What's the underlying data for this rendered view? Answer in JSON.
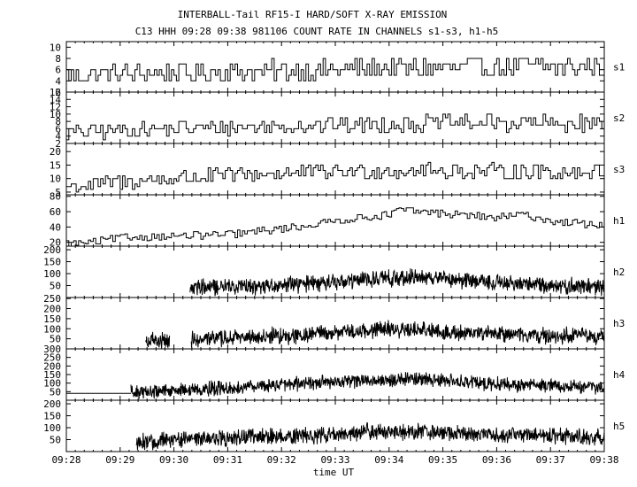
{
  "header": {
    "title": "INTERBALL-Tail RF15-I HARD/SOFT X-RAY EMISSION",
    "subtitle": "C13 HHH 09:28 09:38 981106  COUNT RATE IN CHANNELS s1-s3, h1-h5"
  },
  "chart_data": {
    "type": "line",
    "title": "INTERBALL-Tail RF15-I HARD/SOFT X-RAY EMISSION",
    "subtitle": "C13 HHH 09:28 09:38 981106  COUNT RATE IN CHANNELS s1-s3, h1-h5",
    "xlabel": "time UT",
    "x_range": [
      "09:28",
      "09:38"
    ],
    "x_ticks": [
      "09:28",
      "09:29",
      "09:30",
      "09:31",
      "09:32",
      "09:33",
      "09:34",
      "09:35",
      "09:36",
      "09:37",
      "09:38"
    ],
    "panels": [
      {
        "name": "s1",
        "ylim": [
          2,
          11
        ],
        "yticks": [
          "10",
          "8",
          "6",
          "4",
          "2"
        ],
        "style": "step",
        "trend": [
          [
            0,
            5
          ],
          [
            3,
            5.6
          ],
          [
            6,
            6.2
          ],
          [
            8,
            6.6
          ],
          [
            10,
            6.4
          ]
        ],
        "noise": 1.8
      },
      {
        "name": "s2",
        "ylim": [
          2,
          16
        ],
        "yticks": [
          "16",
          "14",
          "12",
          "10",
          "8",
          "6",
          "4",
          "2"
        ],
        "style": "step",
        "trend": [
          [
            0,
            5
          ],
          [
            2,
            6
          ],
          [
            5,
            7
          ],
          [
            7,
            7.5
          ],
          [
            10,
            7.4
          ]
        ],
        "noise": 2.2
      },
      {
        "name": "s3",
        "ylim": [
          4,
          23
        ],
        "yticks": [
          "20",
          "15",
          "10",
          "5"
        ],
        "style": "step",
        "trend": [
          [
            0,
            7
          ],
          [
            2,
            10
          ],
          [
            4,
            12
          ],
          [
            6,
            13
          ],
          [
            8,
            12.5
          ],
          [
            10,
            12.5
          ]
        ],
        "noise": 3.0
      },
      {
        "name": "h1",
        "ylim": [
          15,
          82
        ],
        "yticks": [
          "80",
          "60",
          "40",
          "20"
        ],
        "style": "step",
        "trend": [
          [
            0,
            18
          ],
          [
            0.5,
            20
          ],
          [
            1,
            26
          ],
          [
            2,
            28
          ],
          [
            3,
            30
          ],
          [
            3.8,
            36
          ],
          [
            4.5,
            42
          ],
          [
            5,
            48
          ],
          [
            6,
            56
          ],
          [
            6.2,
            62
          ],
          [
            7,
            58
          ],
          [
            8,
            52
          ],
          [
            8.5,
            56
          ],
          [
            9,
            48
          ],
          [
            10,
            42
          ]
        ],
        "noise": 5
      },
      {
        "name": "h2",
        "ylim": [
          0,
          215
        ],
        "yticks": [
          "200",
          "150",
          "100",
          "50"
        ],
        "style": "noise",
        "start": 2.3,
        "trend": [
          [
            2.3,
            40
          ],
          [
            4,
            52
          ],
          [
            5,
            65
          ],
          [
            6,
            82
          ],
          [
            6.8,
            85
          ],
          [
            8,
            60
          ],
          [
            10,
            45
          ]
        ],
        "noise": 30
      },
      {
        "name": "h3",
        "ylim": [
          0,
          255
        ],
        "yticks": [
          "250",
          "200",
          "150",
          "100",
          "50"
        ],
        "style": "noise",
        "start": 1.47,
        "gaps": [
          [
            1.92,
            2.32
          ]
        ],
        "trend": [
          [
            1.47,
            35
          ],
          [
            2.3,
            45
          ],
          [
            4,
            65
          ],
          [
            5,
            80
          ],
          [
            6,
            100
          ],
          [
            7,
            85
          ],
          [
            8,
            70
          ],
          [
            10,
            60
          ]
        ],
        "noise": 35
      },
      {
        "name": "h4",
        "ylim": [
          0,
          300
        ],
        "yticks": [
          "300",
          "250",
          "200",
          "150",
          "100",
          "50"
        ],
        "style": "noise",
        "start": 1.2,
        "baseline": [
          [
            0,
            40
          ],
          [
            1.2,
            40
          ]
        ],
        "trend": [
          [
            1.2,
            45
          ],
          [
            2.5,
            65
          ],
          [
            4,
            90
          ],
          [
            5,
            105
          ],
          [
            6,
            125
          ],
          [
            7,
            115
          ],
          [
            8,
            95
          ],
          [
            10,
            75
          ]
        ],
        "noise": 35
      },
      {
        "name": "h5",
        "ylim": [
          0,
          215
        ],
        "yticks": [
          "200",
          "150",
          "100",
          "50"
        ],
        "style": "noise",
        "start": 1.3,
        "trend": [
          [
            1.3,
            35
          ],
          [
            2,
            50
          ],
          [
            3,
            60
          ],
          [
            4,
            65
          ],
          [
            5,
            72
          ],
          [
            6,
            85
          ],
          [
            7,
            80
          ],
          [
            8,
            70
          ],
          [
            10,
            60
          ]
        ],
        "noise": 30
      }
    ]
  }
}
